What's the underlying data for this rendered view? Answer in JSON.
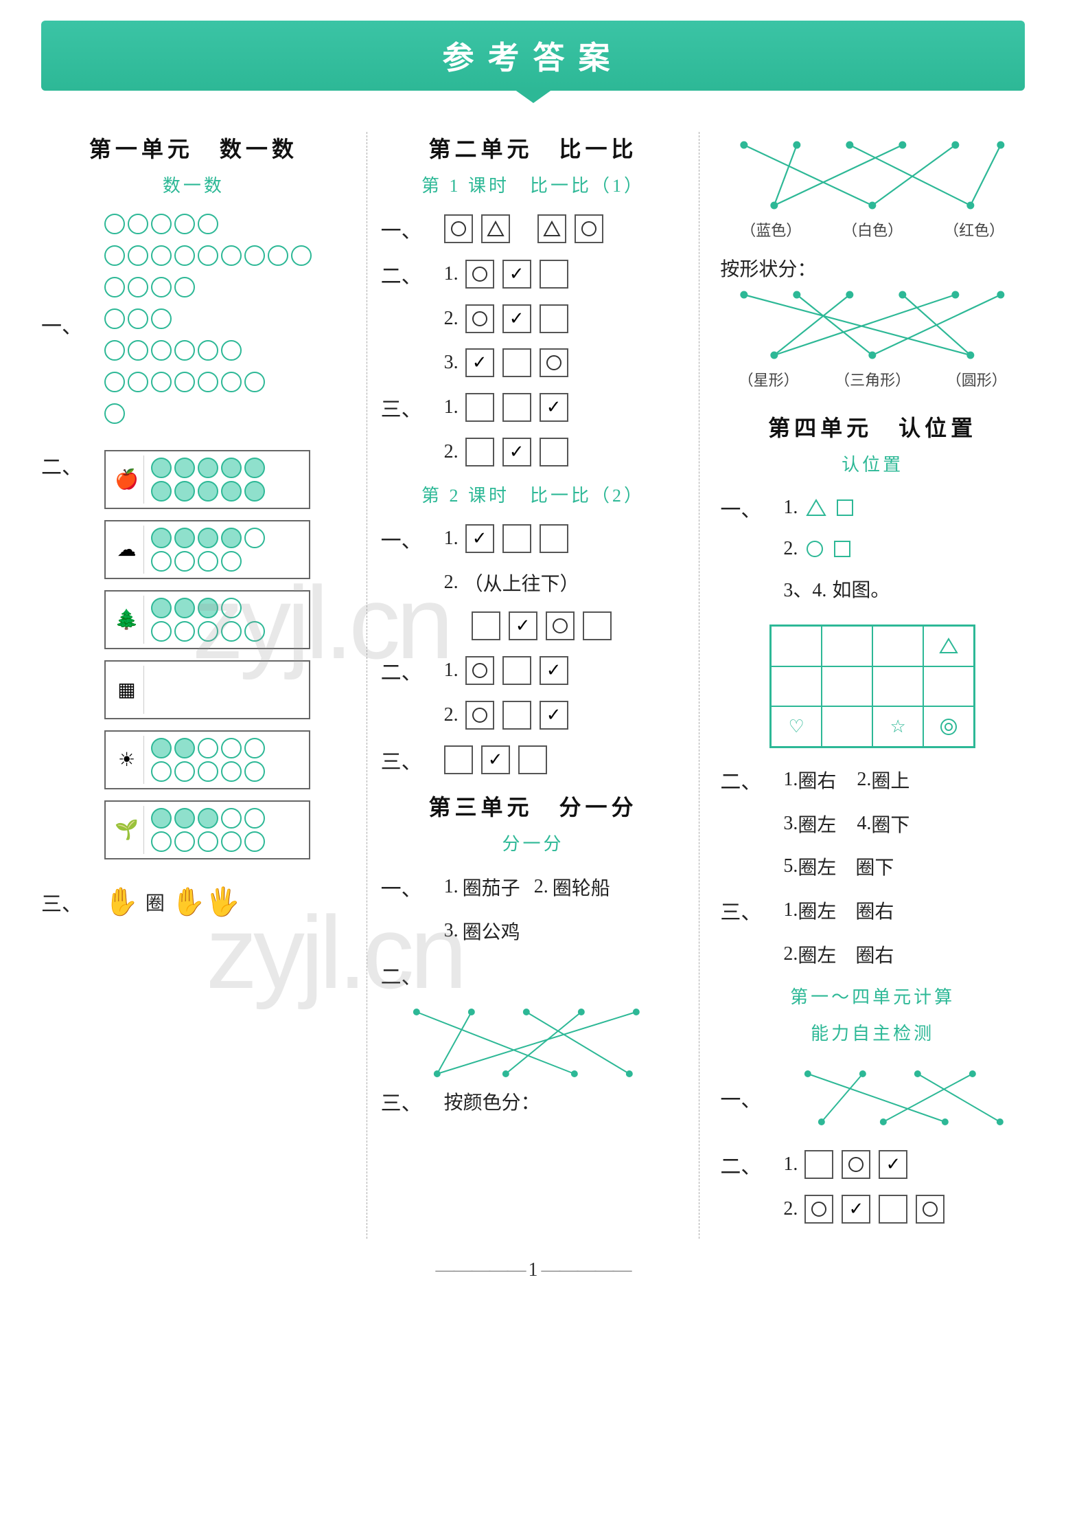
{
  "header": {
    "title": "参考答案"
  },
  "page_number": "1",
  "watermark": "zyjl.cn",
  "colors": {
    "accent": "#2db896",
    "accent_light": "#8fe0cc",
    "text": "#222222",
    "border": "#555555",
    "bg": "#ffffff"
  },
  "col1": {
    "unit": "第一单元　数一数",
    "section": "数一数",
    "q1_label": "一、",
    "q1_rows": [
      5,
      9,
      4,
      3,
      6,
      7,
      1
    ],
    "q2_label": "二、",
    "q2_frames": [
      {
        "icon": "🍎",
        "top_filled": 5,
        "top_total": 5,
        "bot_filled": 5,
        "bot_total": 5
      },
      {
        "icon": "☁",
        "top_filled": 4,
        "top_total": 5,
        "bot_filled": 0,
        "bot_total": 4
      },
      {
        "icon": "🌲",
        "top_filled": 3,
        "top_total": 4,
        "bot_filled": 0,
        "bot_total": 5
      },
      {
        "icon": "▦",
        "top_filled": 0,
        "top_total": 0,
        "bot_filled": 0,
        "bot_total": 0
      },
      {
        "icon": "☀",
        "top_filled": 2,
        "top_total": 5,
        "bot_filled": 0,
        "bot_total": 5
      },
      {
        "icon": "🌱",
        "top_filled": 3,
        "top_total": 5,
        "bot_filled": 0,
        "bot_total": 5
      }
    ],
    "q3_label": "三、",
    "q3_text": "圈　　　圈"
  },
  "col2": {
    "unit": "第二单元　比一比",
    "section1": "第 1 课时　比一比（1）",
    "s1_q1_label": "一、",
    "s1_q1_boxes_a": [
      "circle",
      "triangle"
    ],
    "s1_q1_boxes_b": [
      "triangle",
      "circle"
    ],
    "s1_q2_label": "二、",
    "s1_q2": [
      {
        "num": "1.",
        "boxes": [
          "circle",
          "check",
          "empty"
        ]
      },
      {
        "num": "2.",
        "boxes": [
          "circle",
          "check",
          "empty"
        ]
      },
      {
        "num": "3.",
        "boxes": [
          "check",
          "empty",
          "circle"
        ]
      }
    ],
    "s1_q3_label": "三、",
    "s1_q3": [
      {
        "num": "1.",
        "boxes": [
          "empty",
          "empty",
          "check"
        ]
      },
      {
        "num": "2.",
        "boxes": [
          "empty",
          "check",
          "empty"
        ]
      }
    ],
    "section2": "第 2 课时　比一比（2）",
    "s2_q1_label": "一、",
    "s2_q1_1_num": "1.",
    "s2_q1_1_boxes": [
      "check",
      "empty",
      "empty"
    ],
    "s2_q1_2_num": "2.",
    "s2_q1_2_text": "（从上往下）",
    "s2_q1_2_boxes": [
      "empty",
      "check",
      "circle",
      "empty"
    ],
    "s2_q2_label": "二、",
    "s2_q2": [
      {
        "num": "1.",
        "boxes": [
          "circle",
          "empty",
          "check"
        ]
      },
      {
        "num": "2.",
        "boxes": [
          "circle",
          "empty",
          "check"
        ]
      }
    ],
    "s2_q3_label": "三、",
    "s2_q3_boxes": [
      "empty",
      "check",
      "empty"
    ],
    "unit3": "第三单元　分一分",
    "section3": "分一分",
    "s3_q1_label": "一、",
    "s3_q1_items": [
      {
        "num": "1.",
        "text": "圈茄子"
      },
      {
        "num": "2.",
        "text": "圈轮船"
      },
      {
        "num": "3.",
        "text": "圈公鸡"
      }
    ],
    "s3_q2_label": "二、",
    "s3_q3_label": "三、",
    "s3_q3_text": "按颜色分："
  },
  "col3": {
    "color_labels": [
      "（蓝色）",
      "（白色）",
      "（红色）"
    ],
    "shape_sort_label": "按形状分：",
    "shape_labels": [
      "（星形）",
      "（三角形）",
      "（圆形）"
    ],
    "unit": "第四单元　认位置",
    "section": "认位置",
    "q1_label": "一、",
    "q1_1": "1.",
    "q1_1_shapes": [
      "triangle",
      "square"
    ],
    "q1_2": "2.",
    "q1_2_shapes": [
      "circle",
      "square"
    ],
    "q1_34": "3、4.",
    "q1_34_text": "如图。",
    "grid": {
      "cells": [
        "",
        "",
        "",
        "triangle",
        "",
        "",
        "",
        "",
        "heart",
        "",
        "star",
        "target"
      ]
    },
    "q2_label": "二、",
    "q2_items": [
      {
        "num": "1.",
        "text": "圈右"
      },
      {
        "num": "2.",
        "text": "圈上"
      },
      {
        "num": "3.",
        "text": "圈左"
      },
      {
        "num": "4.",
        "text": "圈下"
      },
      {
        "num": "5.",
        "text": "圈左　圈下"
      }
    ],
    "q3_label": "三、",
    "q3_items": [
      {
        "num": "1.",
        "text": "圈左　圈右"
      },
      {
        "num": "2.",
        "text": "圈左　圈右"
      }
    ],
    "calc_title1": "第一～四单元计算",
    "calc_title2": "能力自主检测",
    "calc_q1_label": "一、",
    "calc_q2_label": "二、",
    "calc_q2": [
      {
        "num": "1.",
        "boxes": [
          "empty",
          "circle",
          "check"
        ]
      },
      {
        "num": "2.",
        "boxes": [
          "circle",
          "check",
          "empty",
          "circle"
        ]
      }
    ]
  }
}
